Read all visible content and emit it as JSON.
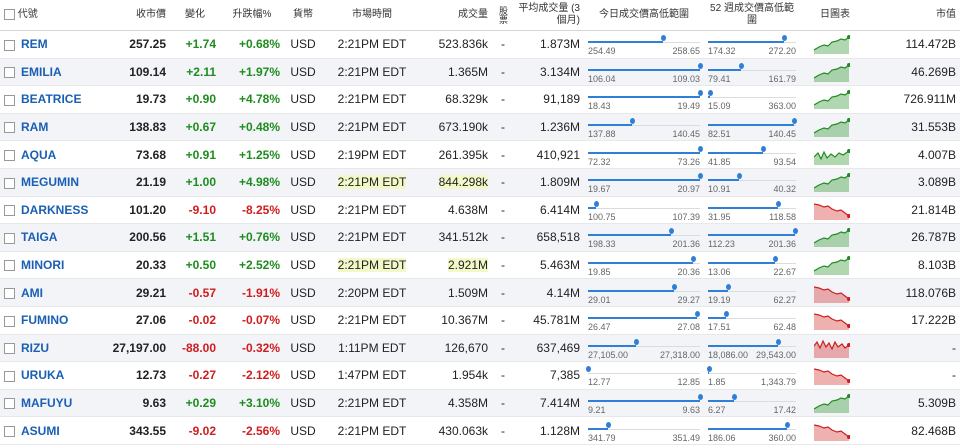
{
  "headers": {
    "code": "代號",
    "close": "收市價",
    "change": "變化",
    "pct": "升跌幅%",
    "currency": "貨幣",
    "time": "市場時間",
    "volume": "成交量",
    "shares": "股票",
    "avgvol": "平均成交量 (3個月)",
    "day_range": "今日成交價高低範圍",
    "wk_range": "52 週成交價高低範圍",
    "chart": "日圖表",
    "mktcap": "市值"
  },
  "colors": {
    "up": "#1e8c1e",
    "down": "#d01c1c",
    "link": "#1a5fb4",
    "bar": "#2f7fd6"
  },
  "rows": [
    {
      "sym": "REM",
      "close": "257.25",
      "chg": "+1.74",
      "pct": "+0.68%",
      "cur": "USD",
      "time": "2:21PM EDT",
      "vol": "523.836k",
      "shares": "-",
      "avg": "1.873M",
      "dlo": "254.49",
      "dhi": "258.65",
      "dpos": 0.67,
      "wlo": "174.32",
      "whi": "272.20",
      "wpos": 0.86,
      "cap": "114.472B",
      "dir": "up",
      "hl": false
    },
    {
      "sym": "EMILIA",
      "close": "109.14",
      "chg": "+2.11",
      "pct": "+1.97%",
      "cur": "USD",
      "time": "2:21PM EDT",
      "vol": "1.365M",
      "shares": "-",
      "avg": "3.134M",
      "dlo": "106.04",
      "dhi": "109.03",
      "dpos": 1.0,
      "wlo": "79.41",
      "whi": "161.79",
      "wpos": 0.38,
      "cap": "46.269B",
      "dir": "up",
      "hl": false
    },
    {
      "sym": "BEATRICE",
      "close": "19.73",
      "chg": "+0.90",
      "pct": "+4.78%",
      "cur": "USD",
      "time": "2:21PM EDT",
      "vol": "68.329k",
      "shares": "-",
      "avg": "91,189",
      "dlo": "18.43",
      "dhi": "19.49",
      "dpos": 1.0,
      "wlo": "15.09",
      "whi": "363.00",
      "wpos": 0.02,
      "cap": "726.911M",
      "dir": "up",
      "hl": false
    },
    {
      "sym": "RAM",
      "close": "138.83",
      "chg": "+0.67",
      "pct": "+0.48%",
      "cur": "USD",
      "time": "2:21PM EDT",
      "vol": "673.190k",
      "shares": "-",
      "avg": "1.236M",
      "dlo": "137.88",
      "dhi": "140.45",
      "dpos": 0.39,
      "wlo": "82.51",
      "whi": "140.45",
      "wpos": 0.98,
      "cap": "31.553B",
      "dir": "up",
      "hl": false
    },
    {
      "sym": "AQUA",
      "close": "73.68",
      "chg": "+0.91",
      "pct": "+1.25%",
      "cur": "USD",
      "time": "2:19PM EDT",
      "vol": "261.395k",
      "shares": "-",
      "avg": "410,921",
      "dlo": "72.32",
      "dhi": "73.26",
      "dpos": 1.0,
      "wlo": "41.85",
      "whi": "93.54",
      "wpos": 0.62,
      "cap": "4.007B",
      "dir": "mix",
      "hl": false
    },
    {
      "sym": "MEGUMIN",
      "close": "21.19",
      "chg": "+1.00",
      "pct": "+4.98%",
      "cur": "USD",
      "time": "2:21PM EDT",
      "vol": "844.298k",
      "shares": "-",
      "avg": "1.809M",
      "dlo": "19.67",
      "dhi": "20.97",
      "dpos": 1.0,
      "wlo": "10.91",
      "whi": "40.32",
      "wpos": 0.35,
      "cap": "3.089B",
      "dir": "up",
      "hl": true
    },
    {
      "sym": "DARKNESS",
      "close": "101.20",
      "chg": "-9.10",
      "pct": "-8.25%",
      "cur": "USD",
      "time": "2:21PM EDT",
      "vol": "4.638M",
      "shares": "-",
      "avg": "6.414M",
      "dlo": "100.75",
      "dhi": "107.39",
      "dpos": 0.07,
      "wlo": "31.95",
      "whi": "118.58",
      "wpos": 0.8,
      "cap": "21.814B",
      "dir": "down",
      "hl": false
    },
    {
      "sym": "TAIGA",
      "close": "200.56",
      "chg": "+1.51",
      "pct": "+0.76%",
      "cur": "USD",
      "time": "2:21PM EDT",
      "vol": "341.512k",
      "shares": "-",
      "avg": "658,518",
      "dlo": "198.33",
      "dhi": "201.36",
      "dpos": 0.74,
      "wlo": "112.23",
      "whi": "201.36",
      "wpos": 0.99,
      "cap": "26.787B",
      "dir": "up",
      "hl": false
    },
    {
      "sym": "MINORI",
      "close": "20.33",
      "chg": "+0.50",
      "pct": "+2.52%",
      "cur": "USD",
      "time": "2:21PM EDT",
      "vol": "2.921M",
      "shares": "-",
      "avg": "5.463M",
      "dlo": "19.85",
      "dhi": "20.36",
      "dpos": 0.94,
      "wlo": "13.06",
      "whi": "22.67",
      "wpos": 0.76,
      "cap": "8.103B",
      "dir": "up",
      "hl": true
    },
    {
      "sym": "AMI",
      "close": "29.21",
      "chg": "-0.57",
      "pct": "-1.91%",
      "cur": "USD",
      "time": "2:20PM EDT",
      "vol": "1.509M",
      "shares": "-",
      "avg": "4.14M",
      "dlo": "29.01",
      "dhi": "29.27",
      "dpos": 0.77,
      "wlo": "19.19",
      "whi": "62.27",
      "wpos": 0.23,
      "cap": "118.076B",
      "dir": "down",
      "hl": false
    },
    {
      "sym": "FUMINO",
      "close": "27.06",
      "chg": "-0.02",
      "pct": "-0.07%",
      "cur": "USD",
      "time": "2:21PM EDT",
      "vol": "10.367M",
      "shares": "-",
      "avg": "45.781M",
      "dlo": "26.47",
      "dhi": "27.08",
      "dpos": 0.97,
      "wlo": "17.51",
      "whi": "62.48",
      "wpos": 0.21,
      "cap": "17.222B",
      "dir": "down",
      "hl": false
    },
    {
      "sym": "RIZU",
      "close": "27,197.00",
      "chg": "-88.00",
      "pct": "-0.32%",
      "cur": "USD",
      "time": "1:11PM EDT",
      "vol": "126,670",
      "shares": "-",
      "avg": "637,469",
      "dlo": "27,105.00",
      "dhi": "27,318.00",
      "dpos": 0.43,
      "wlo": "18,086.00",
      "whi": "29,543.00",
      "wpos": 0.8,
      "cap": "-",
      "dir": "downmix",
      "hl": false
    },
    {
      "sym": "URUKA",
      "close": "12.73",
      "chg": "-0.27",
      "pct": "-2.12%",
      "cur": "USD",
      "time": "1:47PM EDT",
      "vol": "1.954k",
      "shares": "-",
      "avg": "7,385",
      "dlo": "12.77",
      "dhi": "12.85",
      "dpos": 0.0,
      "wlo": "1.85",
      "whi": "1,343.79",
      "wpos": 0.01,
      "cap": "-",
      "dir": "down",
      "hl": false
    },
    {
      "sym": "MAFUYU",
      "close": "9.63",
      "chg": "+0.29",
      "pct": "+3.10%",
      "cur": "USD",
      "time": "2:21PM EDT",
      "vol": "4.358M",
      "shares": "-",
      "avg": "7.414M",
      "dlo": "9.21",
      "dhi": "9.63",
      "dpos": 1.0,
      "wlo": "6.27",
      "whi": "17.42",
      "wpos": 0.3,
      "cap": "5.309B",
      "dir": "up",
      "hl": false
    },
    {
      "sym": "ASUMI",
      "close": "343.55",
      "chg": "-9.02",
      "pct": "-2.56%",
      "cur": "USD",
      "time": "2:21PM EDT",
      "vol": "430.063k",
      "shares": "-",
      "avg": "1.128M",
      "dlo": "341.79",
      "dhi": "351.49",
      "dpos": 0.18,
      "wlo": "186.06",
      "whi": "360.00",
      "wpos": 0.9,
      "cap": "82.468B",
      "dir": "down",
      "hl": false
    }
  ]
}
